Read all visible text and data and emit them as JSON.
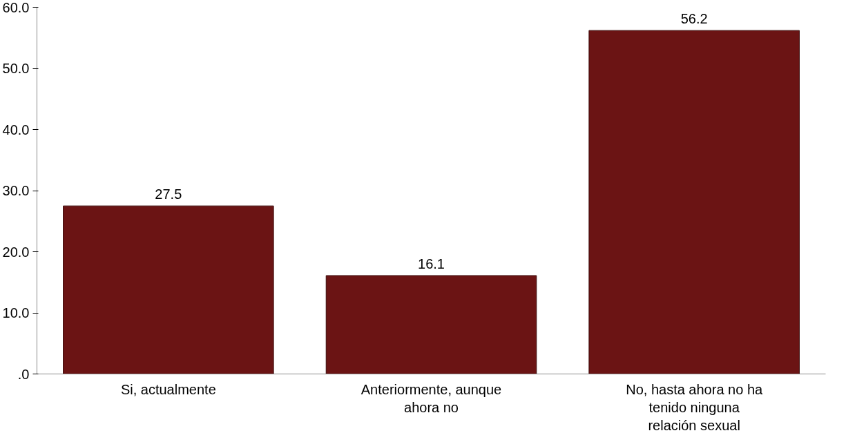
{
  "chart_data": {
    "type": "bar",
    "categories": [
      "Si, actualmente",
      "Anteriormente, aunque ahora no",
      "No, hasta ahora no ha tenido ninguna relación sexual"
    ],
    "values": [
      27.5,
      16.1,
      56.2
    ],
    "color": "#6b1414",
    "ylim": [
      0,
      60
    ],
    "yticks": [
      {
        "value": 0,
        "label": ".0"
      },
      {
        "value": 10,
        "label": "10.0"
      },
      {
        "value": 20,
        "label": "20.0"
      },
      {
        "value": 30,
        "label": "30.0"
      },
      {
        "value": 40,
        "label": "40.0"
      },
      {
        "value": 50,
        "label": "50.0"
      },
      {
        "value": 60,
        "label": "60.0"
      }
    ],
    "data_labels": true,
    "grid": false
  }
}
